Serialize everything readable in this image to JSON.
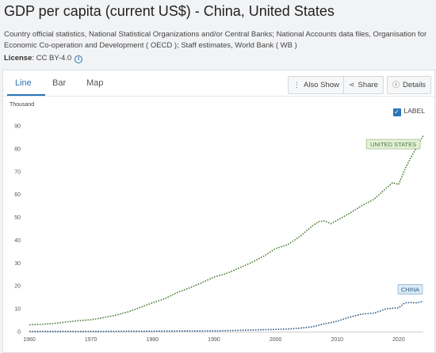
{
  "header": {
    "title": "GDP per capita (current US$) - China, United States",
    "source": "Country official statistics, National Statistical Organizations and/or Central Banks; National Accounts data files, Organisation for Economic Co-operation and Development ( OECD ); Staff estimates, World Bank ( WB )",
    "license_label": "License",
    "license_value": ": CC BY-4.0"
  },
  "tabs": [
    {
      "label": "Line",
      "active": true
    },
    {
      "label": "Bar",
      "active": false
    },
    {
      "label": "Map",
      "active": false
    }
  ],
  "toolbar": {
    "also_show": "Also Show",
    "share": "Share",
    "details": "Details"
  },
  "label_toggle": {
    "label": "LABEL",
    "checked": true
  },
  "colors": {
    "us_line": "#4e7d3a",
    "us_label_bg": "#e3efd9",
    "us_label_border": "#9dbf86",
    "china_line": "#2d5b86",
    "china_label_bg": "#dcebf6",
    "china_label_border": "#8fb5d6",
    "accent": "#2a74b8"
  },
  "chart_data": {
    "type": "line",
    "unit_label": "Thousand",
    "xlim": [
      1960,
      2024
    ],
    "ylim": [
      0,
      90
    ],
    "x_ticks": [
      1960,
      1970,
      1980,
      1990,
      2000,
      2010,
      2020
    ],
    "y_ticks": [
      0,
      10,
      20,
      30,
      40,
      50,
      60,
      70,
      80,
      90
    ],
    "grid": false,
    "series": [
      {
        "name": "UNITED STATES",
        "x": [
          1960,
          1962,
          1964,
          1966,
          1968,
          1970,
          1972,
          1974,
          1976,
          1978,
          1980,
          1982,
          1984,
          1986,
          1988,
          1990,
          1992,
          1994,
          1996,
          1998,
          2000,
          2002,
          2004,
          2006,
          2007,
          2008,
          2009,
          2010,
          2012,
          2014,
          2016,
          2018,
          2019,
          2020,
          2021,
          2022,
          2023,
          2024
        ],
        "values": [
          3.0,
          3.2,
          3.6,
          4.2,
          4.8,
          5.2,
          6.1,
          7.2,
          8.6,
          10.6,
          12.6,
          14.4,
          17.1,
          19.1,
          21.4,
          23.9,
          25.4,
          27.7,
          30.1,
          32.9,
          36.3,
          38.1,
          41.7,
          46.3,
          48.1,
          48.4,
          47.2,
          48.7,
          51.7,
          55.1,
          57.9,
          62.8,
          65.1,
          64.4,
          71.0,
          76.3,
          81.0,
          85.8
        ]
      },
      {
        "name": "CHINA",
        "x": [
          1960,
          1965,
          1970,
          1975,
          1980,
          1985,
          1990,
          1995,
          2000,
          2002,
          2004,
          2006,
          2008,
          2010,
          2012,
          2014,
          2016,
          2018,
          2019,
          2020,
          2021,
          2022,
          2023,
          2024
        ],
        "values": [
          0.09,
          0.1,
          0.11,
          0.18,
          0.2,
          0.29,
          0.32,
          0.61,
          0.96,
          1.15,
          1.51,
          2.1,
          3.47,
          4.55,
          6.3,
          7.68,
          8.09,
          9.98,
          10.2,
          10.4,
          12.6,
          12.7,
          12.6,
          13.3
        ]
      }
    ]
  }
}
